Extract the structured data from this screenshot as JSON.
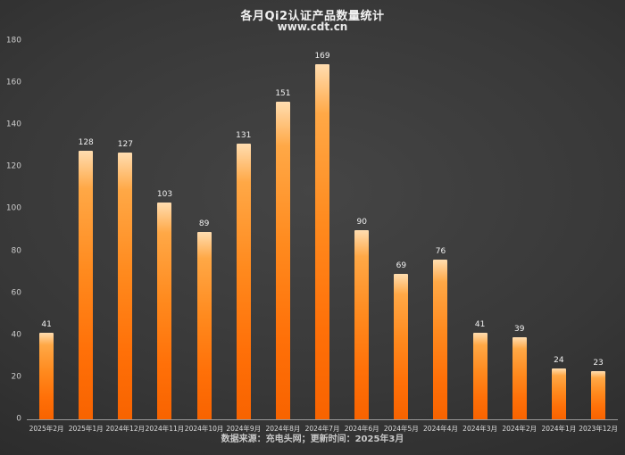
{
  "header": {
    "title": "各月Qi2认证产品数量统计",
    "subtitle": "www.cdt.cn"
  },
  "footer": {
    "text": "数据来源：充电头网；更新时间：2025年3月"
  },
  "chart_data": {
    "type": "bar",
    "title": "各月Qi2认证产品数量统计",
    "subtitle": "www.cdt.cn",
    "categories": [
      "2025年2月",
      "2025年1月",
      "2024年12月",
      "2024年11月",
      "2024年10月",
      "2024年9月",
      "2024年8月",
      "2024年7月",
      "2024年6月",
      "2024年5月",
      "2024年4月",
      "2024年3月",
      "2024年2月",
      "2024年1月",
      "2023年12月"
    ],
    "values": [
      41,
      128,
      127,
      103,
      89,
      131,
      151,
      169,
      90,
      69,
      76,
      41,
      39,
      24,
      23
    ],
    "xlabel": "",
    "ylabel": "",
    "ylim": [
      0,
      180
    ],
    "ytick_step": 20,
    "grid": false,
    "legend": "none",
    "bar_color_top": "#ffddb0",
    "bar_color_bottom": "#f86300",
    "background_color": "#2f2f2f",
    "source_note": "数据来源：充电头网；更新时间：2025年3月"
  }
}
